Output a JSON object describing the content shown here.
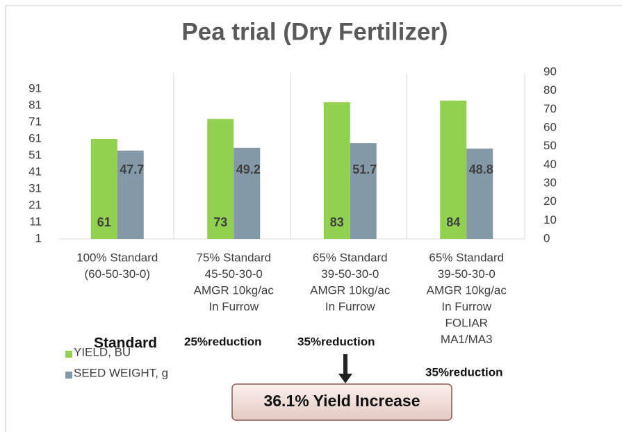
{
  "chart_data": {
    "type": "bar",
    "title": "Pea trial (Dry Fertilizer)",
    "categories": [
      [
        "100% Standard",
        "(60-50-30-0)"
      ],
      [
        "75% Standard",
        "45-50-30-0",
        "AMGR 10kg/ac",
        "In Furrow"
      ],
      [
        "65% Standard",
        "39-50-30-0",
        "AMGR 10kg/ac",
        "In Furrow"
      ],
      [
        "65% Standard",
        "39-50-30-0",
        "AMGR 10kg/ac",
        "In Furrow",
        "FOLIAR",
        "MA1/MA3"
      ]
    ],
    "series": [
      {
        "name": "YIELD, BU",
        "color": "#92d050",
        "values": [
          61,
          73,
          83,
          84
        ]
      },
      {
        "name": "SEED WEIGHT, g",
        "color": "#8499a8",
        "values": [
          47.7,
          49.2,
          51.7,
          48.8
        ],
        "axis": "y2"
      }
    ],
    "ylim": [
      1,
      101
    ],
    "yticks": [
      1,
      11,
      21,
      31,
      41,
      51,
      61,
      71,
      81,
      91
    ],
    "y2lim": [
      0,
      90
    ],
    "y2ticks": [
      0,
      10,
      20,
      30,
      40,
      50,
      60,
      70,
      80,
      90
    ],
    "grid": false,
    "legend": "bottom-left",
    "annotations": [
      "Standard",
      "25%reduction",
      "35%reduction",
      "35%reduction",
      "36.1% Yield Increase"
    ]
  }
}
